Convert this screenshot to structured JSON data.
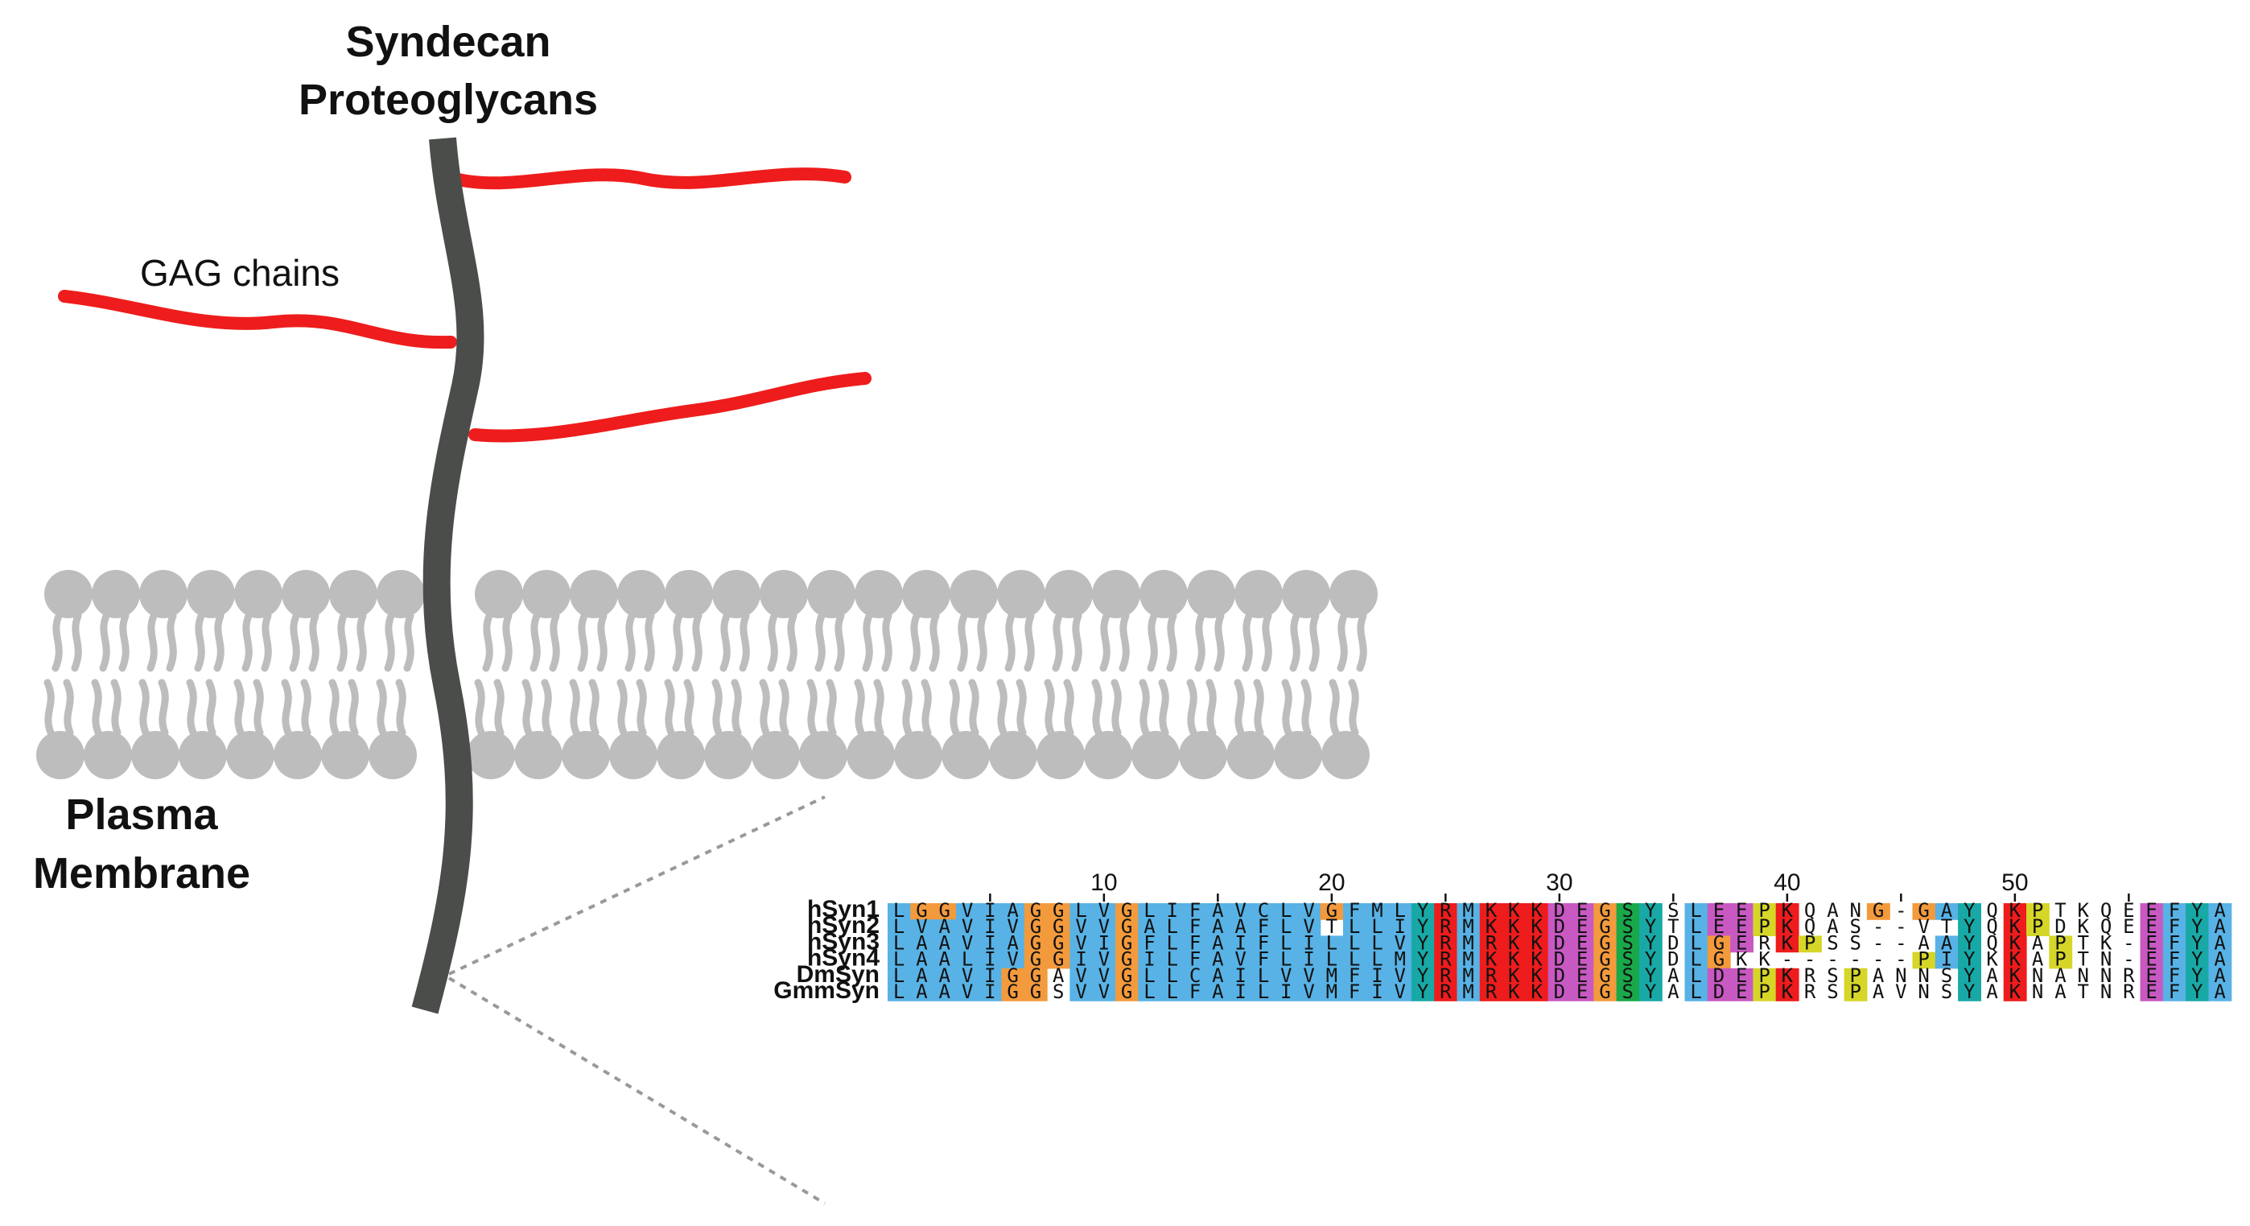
{
  "labels": {
    "proteoglycan_line1": "Syndecan",
    "proteoglycan_line2": "Proteoglycans",
    "gag": "GAG chains",
    "membrane_line1": "Plasma",
    "membrane_line2": "Membrane"
  },
  "colors": {
    "core_protein": "#4a4d4a",
    "gag_chain": "#ee1c1c",
    "lipid": "#bdbdbd"
  },
  "alignment": {
    "ruler": [
      {
        "position": 10,
        "label": "10"
      },
      {
        "position": 20,
        "label": "20"
      },
      {
        "position": 30,
        "label": "30"
      },
      {
        "position": 40,
        "label": "40"
      },
      {
        "position": 50,
        "label": "50"
      }
    ],
    "sequences": [
      {
        "name": "hSyn1",
        "sequence": "LGGVIAGGLVGLIFAVCLVGFMLYRMKKKDEGSYSLEEPKQANG-GAYQKPTKQEEFYA"
      },
      {
        "name": "hSyn2",
        "sequence": "LVAVIVGGVVGALFAAFLVTLLIYRMKKKDEGSYTLEEPKQAS--VTYQKPDKQEEFYA"
      },
      {
        "name": "hSyn3",
        "sequence": "LAAVIAGGVIGFLFAIFLILLLVYRMRKKDEGSYDLGERKPSS--AAYQKAPTK-EFYA"
      },
      {
        "name": "hSyn4",
        "sequence": "LAALIVGGIVGILFAVFLILLLMYRMKKKDEGSYDLGKK------PIYKKAPTN-EFYA"
      },
      {
        "name": "DmSyn",
        "sequence": "LAAVIGGAVVGLLCAILVVMFIVYRMRKKDEGSYALDEPKRSPANNSYAKNANNREFYA"
      },
      {
        "name": "GmmSyn",
        "sequence": "LAAVIGGSVVGLLFAILIVMFIVYRMRKKDEGSYALDEPKRSPAVNSYAKNATNREFYA"
      }
    ],
    "residue_colors": {
      "hydrophobic": "#58b2e5",
      "glycine": "#f39a3c",
      "tyrosine_histidine": "#18a9a6",
      "positive": "#ee1c1c",
      "negative": "#c859c2",
      "polar": "#19a84a",
      "proline": "#d6d629",
      "polar_nt": "#19a84a"
    }
  }
}
